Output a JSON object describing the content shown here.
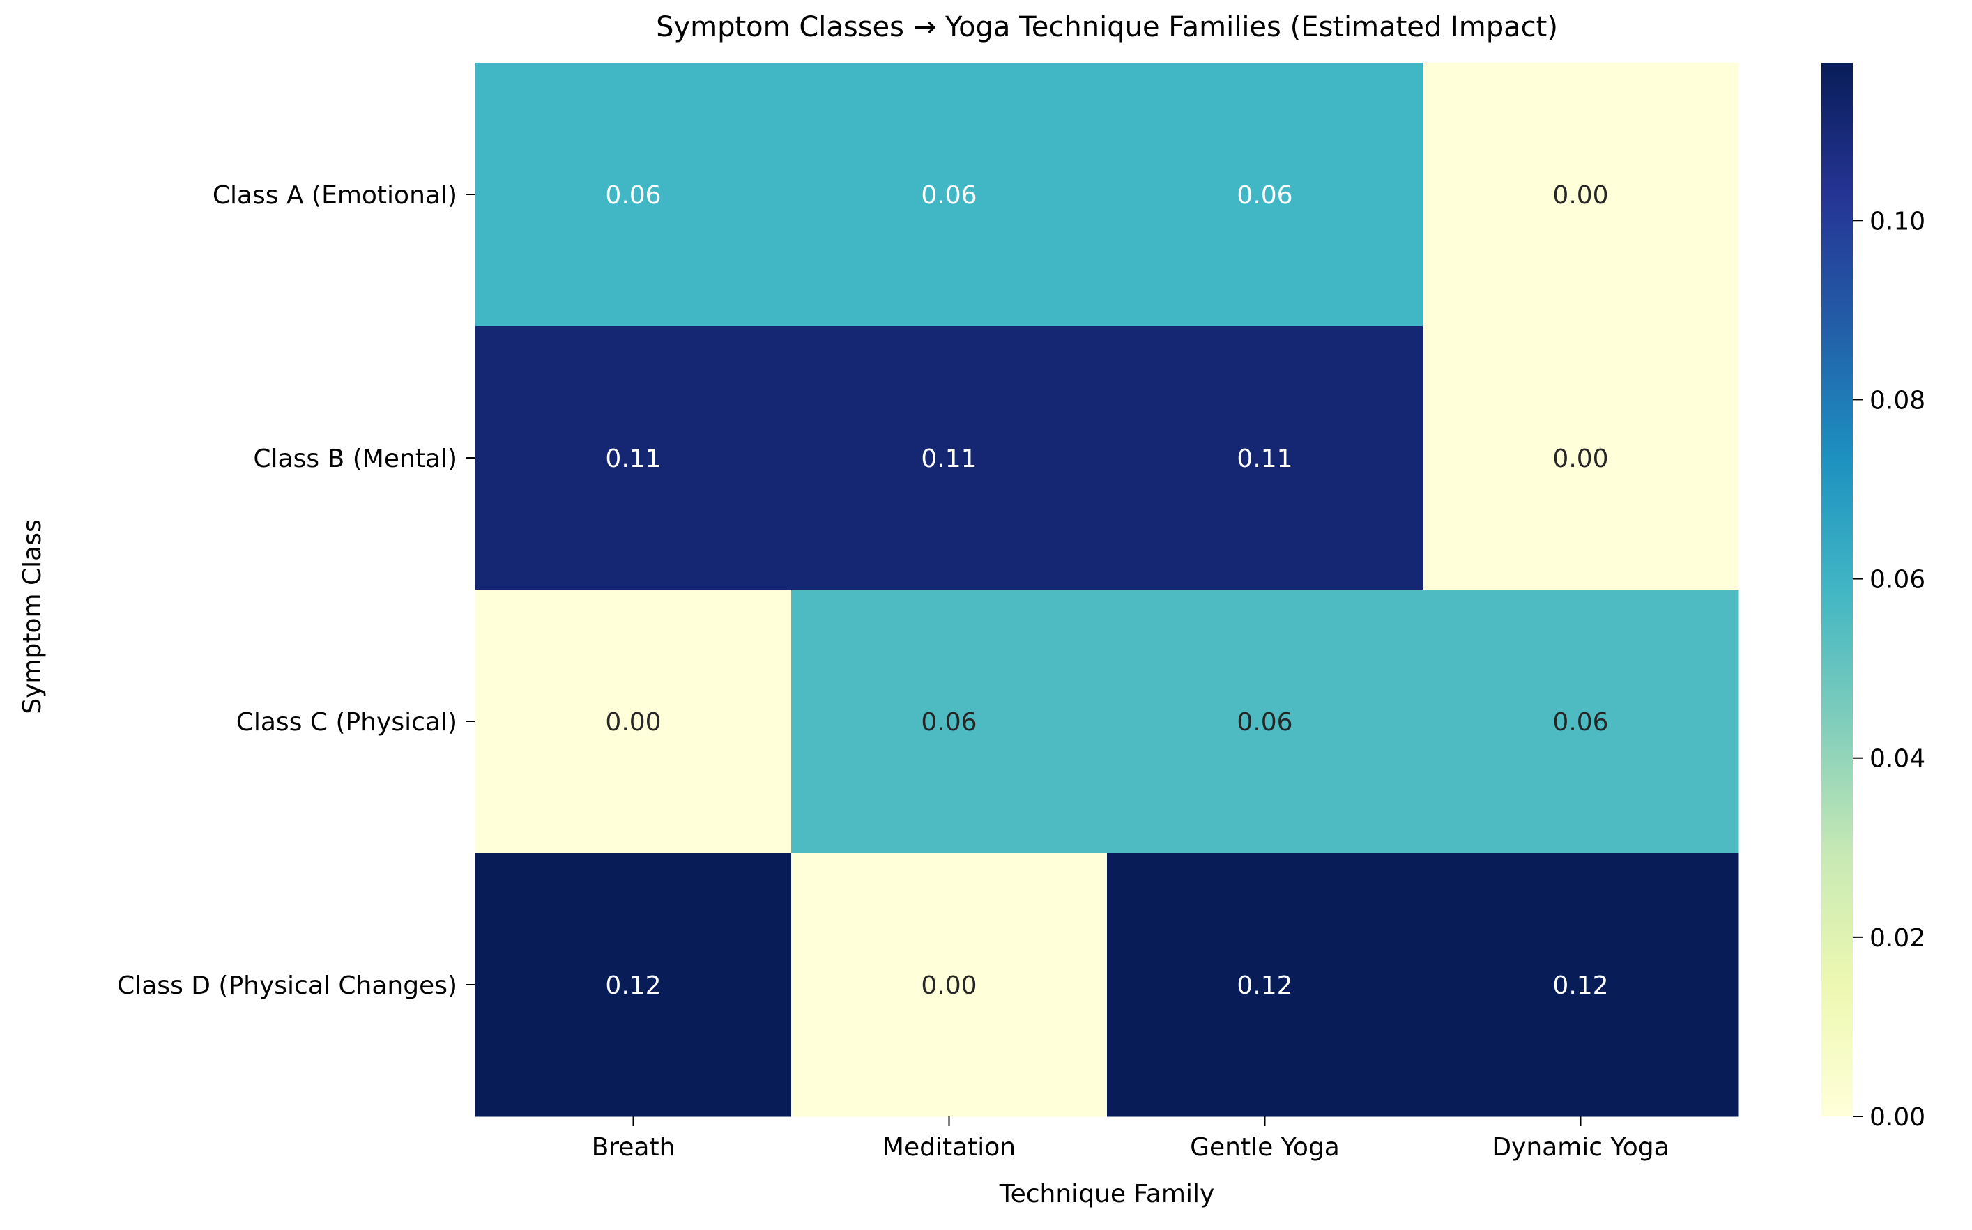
{
  "chart_data": {
    "type": "heatmap",
    "title": "Symptom Classes → Yoga Technique Families (Estimated Impact)",
    "xlabel": "Technique Family",
    "ylabel": "Symptom Class",
    "x_categories": [
      "Breath",
      "Meditation",
      "Gentle Yoga",
      "Dynamic Yoga"
    ],
    "y_categories": [
      "Class A (Emotional)",
      "Class B (Mental)",
      "Class C (Physical)",
      "Class D (Physical Changes)"
    ],
    "values": [
      [
        0.0588,
        0.0588,
        0.0588,
        0.0
      ],
      [
        0.1111,
        0.1111,
        0.1111,
        0.0
      ],
      [
        0.0,
        0.0556,
        0.0556,
        0.0556
      ],
      [
        0.1176,
        0.0,
        0.1176,
        0.1176
      ]
    ],
    "value_labels": [
      [
        "0.06",
        "0.06",
        "0.06",
        "0.00"
      ],
      [
        "0.11",
        "0.11",
        "0.11",
        "0.00"
      ],
      [
        "0.00",
        "0.06",
        "0.06",
        "0.06"
      ],
      [
        "0.12",
        "0.00",
        "0.12",
        "0.12"
      ]
    ],
    "colorbar": {
      "colormap": "YlGnBu",
      "range": [
        0.0,
        0.1176
      ],
      "ticks": [
        0.0,
        0.02,
        0.04,
        0.06,
        0.08,
        0.1
      ],
      "tick_labels": [
        "0.00",
        "0.02",
        "0.04",
        "0.06",
        "0.08",
        "0.10"
      ]
    },
    "grid": false
  },
  "colors": {
    "colormap_stops": [
      "#ffffd9",
      "#edf8b1",
      "#c7e9b4",
      "#7fcdbb",
      "#41b6c4",
      "#1d91c0",
      "#225ea8",
      "#253494",
      "#081d58"
    ],
    "text_light": "#ffffff",
    "text_dark": "#262626",
    "axis": "#000000"
  }
}
